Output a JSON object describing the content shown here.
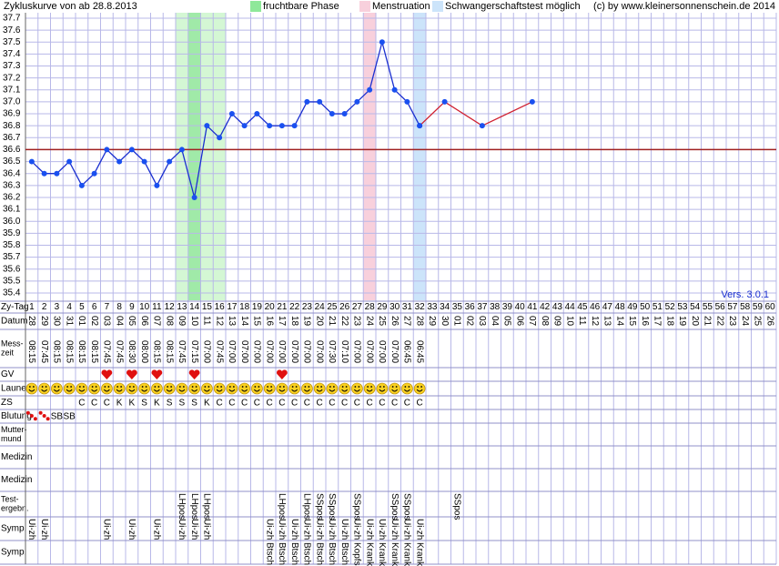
{
  "chart_data": {
    "type": "line",
    "title": "Zykluskurve von       ab 28.8.2013",
    "legend": [
      {
        "name": "fruchtbare Phase",
        "color": "#8fe89a"
      },
      {
        "name": "Menstruation",
        "color": "#f8d0dc"
      },
      {
        "name": "Schwangerschaftstest möglich",
        "color": "#cce4fa"
      }
    ],
    "copyright": "(c) by www.kleinersonnenschein.de 2014",
    "version": "Vers. 3.0.1",
    "ylim": [
      35.4,
      37.7
    ],
    "yticks": [
      35.4,
      35.5,
      35.6,
      35.7,
      35.8,
      35.9,
      {
        "value": 36,
        "label": "36.0"
      },
      36.1,
      36.2,
      36.3,
      36.4,
      36.5,
      36.6,
      36.7,
      36.8,
      36.9,
      {
        "value": 37,
        "label": "37.0"
      },
      37.1,
      37.2,
      37.3,
      37.4,
      37.5,
      37.6,
      37.7
    ],
    "cover_line": 36.6,
    "bands": [
      {
        "from": 13,
        "to": 16,
        "color": "#d4f7d4"
      },
      {
        "from": 14,
        "to": 14,
        "color": "#a0eaa8"
      },
      {
        "from": 28,
        "to": 28,
        "color": "#f8d0dc"
      },
      {
        "from": 32,
        "to": 32,
        "color": "#cce4fa"
      }
    ],
    "series": [
      {
        "color": "#1a2fd0",
        "x": [
          1,
          2,
          3,
          4,
          5,
          6,
          7,
          8,
          9,
          10,
          11,
          12,
          13,
          14,
          15,
          16,
          17,
          18,
          19,
          20,
          21,
          22,
          23,
          24,
          25,
          26,
          27,
          28,
          29,
          30,
          31,
          32
        ],
        "values": [
          36.5,
          36.4,
          36.4,
          36.5,
          36.3,
          36.4,
          36.6,
          36.5,
          36.6,
          36.5,
          36.3,
          36.5,
          36.6,
          36.2,
          36.8,
          36.7,
          36.9,
          36.8,
          36.9,
          36.8,
          36.8,
          36.8,
          37,
          37,
          36.9,
          36.9,
          37,
          37.1,
          37.5,
          37.1,
          37,
          36.8
        ]
      },
      {
        "color": "#d02030",
        "x": [
          32,
          34,
          37,
          41
        ],
        "values": [
          36.8,
          37,
          36.8,
          37
        ]
      }
    ]
  },
  "table": {
    "row_labels": [
      "Zy-Tag",
      "Datum",
      [
        "Mess-",
        "zeit"
      ],
      "GV",
      "Laune",
      "ZS",
      "Blutung",
      [
        "Mutter-",
        "mund"
      ],
      "Medizin",
      "Medizin",
      [
        "Test-",
        "ergebn."
      ],
      "Symp.",
      "Symp."
    ],
    "days": [
      1,
      2,
      3,
      4,
      5,
      6,
      7,
      8,
      9,
      10,
      11,
      12,
      13,
      14,
      15,
      16,
      17,
      18,
      19,
      20,
      21,
      22,
      23,
      24,
      25,
      26,
      27,
      28,
      29,
      30,
      31,
      32,
      33,
      34,
      35,
      36,
      37,
      38,
      39,
      40,
      41,
      42,
      43,
      44,
      45,
      46,
      47,
      48,
      49,
      50,
      51,
      52,
      53,
      54,
      55,
      56,
      57,
      58,
      59,
      60
    ],
    "dates": [
      "28",
      "29",
      "30",
      "31",
      "01",
      "02",
      "03",
      "04",
      "05",
      "06",
      "07",
      "08",
      "09",
      "10",
      "11",
      "12",
      "13",
      "14",
      "15",
      "16",
      "17",
      "18",
      "19",
      "20",
      "21",
      "22",
      "23",
      "24",
      "25",
      "26",
      "27",
      "28",
      "29",
      "30",
      "01",
      "02",
      "03",
      "04",
      "05",
      "06",
      "07",
      "08",
      "09",
      "10",
      "11",
      "12",
      "13",
      "14",
      "15",
      "16",
      "17",
      "18",
      "19",
      "20",
      "21",
      "22",
      "23",
      "24",
      "25",
      "26"
    ],
    "times": [
      "08:15",
      "07:45",
      "08:15",
      "08:15",
      "08:15",
      "08:15",
      "07:45",
      "07:45",
      "08:30",
      "08:00",
      "08:15",
      "08:15",
      "07:45",
      "07:15",
      "07:00",
      "07:45",
      "07:00",
      "07:00",
      "07:00",
      "07:00",
      "07:00",
      "07:00",
      "07:00",
      "07:00",
      "07:30",
      "07:10",
      "07:00",
      "07:00",
      "07:00",
      "07:00",
      "06:45",
      "06:45"
    ],
    "gv_days": [
      7,
      9,
      11,
      14,
      21
    ],
    "zs": [
      null,
      null,
      null,
      null,
      "C",
      "C",
      "C",
      "K",
      "K",
      "S",
      "K",
      "S",
      "S",
      "S",
      "K",
      "C",
      "C",
      "C",
      "C",
      "C",
      "C",
      "C",
      "C",
      "C",
      "C",
      "C",
      "C",
      "C",
      "C",
      "C",
      "C",
      "C"
    ],
    "bleeding_dots": [
      1,
      2
    ],
    "bleeding": [
      {
        "day": 3,
        "text": "SB"
      },
      {
        "day": 4,
        "text": "SB"
      }
    ],
    "tests": [
      {
        "day": 13,
        "text": "LHpos"
      },
      {
        "day": 14,
        "text": "LHpos"
      },
      {
        "day": 15,
        "text": "LHpos"
      },
      {
        "day": 21,
        "text": "LHpos"
      },
      {
        "day": 23,
        "text": "LHpos"
      },
      {
        "day": 24,
        "text": "SSpos"
      },
      {
        "day": 25,
        "text": "SSpos"
      },
      {
        "day": 27,
        "text": "SSpos"
      },
      {
        "day": 30,
        "text": "SSpos"
      },
      {
        "day": 31,
        "text": "SSpos"
      },
      {
        "day": 35,
        "text": "SSpos"
      }
    ],
    "symp1": [
      {
        "day": 1,
        "text": "Ui-zh"
      },
      {
        "day": 2,
        "text": "Ui-zh"
      },
      {
        "day": 7,
        "text": "Ui-zh"
      },
      {
        "day": 9,
        "text": "Ui-zh"
      },
      {
        "day": 11,
        "text": "Ui-zh"
      },
      {
        "day": 13,
        "text": "Ui-zh"
      },
      {
        "day": 14,
        "text": "Ui-zh"
      },
      {
        "day": 15,
        "text": "Ui-zh"
      },
      {
        "day": 20,
        "text": "Ui-zh"
      },
      {
        "day": 21,
        "text": "Ui-zh"
      },
      {
        "day": 22,
        "text": "Ui-zh"
      },
      {
        "day": 23,
        "text": "Ui-zh"
      },
      {
        "day": 24,
        "text": "Ui-zh"
      },
      {
        "day": 25,
        "text": "Ui-zh"
      },
      {
        "day": 26,
        "text": "Ui-zh"
      },
      {
        "day": 27,
        "text": "Ui-zh"
      },
      {
        "day": 28,
        "text": "Ui-zh"
      },
      {
        "day": 29,
        "text": "Ui-zh"
      },
      {
        "day": 30,
        "text": "Ui-zh"
      },
      {
        "day": 31,
        "text": "Ui-zh"
      },
      {
        "day": 32,
        "text": "Ui-zh"
      }
    ],
    "symp2": [
      {
        "day": 20,
        "text": "Btsch"
      },
      {
        "day": 21,
        "text": "Btsch"
      },
      {
        "day": 22,
        "text": "Btsch"
      },
      {
        "day": 23,
        "text": "Btsch"
      },
      {
        "day": 24,
        "text": "Btsch"
      },
      {
        "day": 25,
        "text": "Btsch"
      },
      {
        "day": 26,
        "text": "Btsch"
      },
      {
        "day": 27,
        "text": "Kopfs"
      },
      {
        "day": 28,
        "text": "Krank"
      },
      {
        "day": 29,
        "text": "Krank"
      },
      {
        "day": 30,
        "text": "Krank"
      },
      {
        "day": 31,
        "text": "Krank"
      },
      {
        "day": 32,
        "text": "Krank"
      }
    ]
  }
}
